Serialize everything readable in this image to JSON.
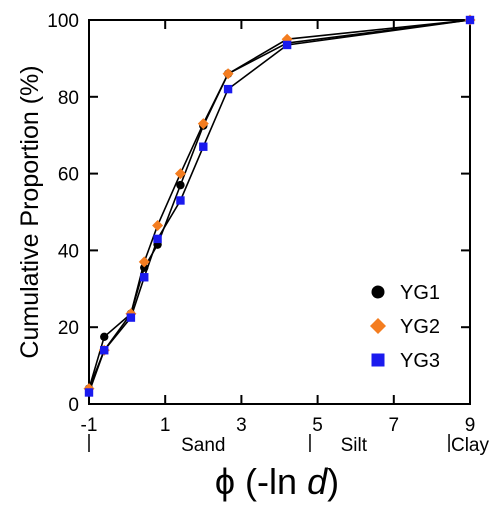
{
  "chart_data": {
    "type": "line",
    "title": "",
    "xlabel": {
      "prefix": "ϕ (-ln ",
      "var": "d",
      "suffix": ")"
    },
    "ylabel": "Cumulative Proportion (%)",
    "xlim": [
      -1,
      9
    ],
    "ylim": [
      0,
      100
    ],
    "xticks": [
      -1,
      1,
      3,
      5,
      7,
      9
    ],
    "xtick_labels": [
      "-1",
      "1",
      "3",
      "5",
      "7",
      "9"
    ],
    "yticks": [
      0,
      20,
      40,
      60,
      80,
      100
    ],
    "ytick_labels": [
      "0",
      "20",
      "40",
      "60",
      "80",
      "100"
    ],
    "grid": false,
    "legend_position": "bottom-right",
    "class_labels": [
      {
        "text": "Sand",
        "x": 2.0
      },
      {
        "text": "Silt",
        "x": 5.95
      },
      {
        "text": "Clay",
        "x": 9.0
      }
    ],
    "class_dividers": [
      -1,
      4.8,
      8.45
    ],
    "series": [
      {
        "name": "YG1",
        "color": "#000000",
        "marker": "circle",
        "x": [
          -1.0,
          -0.6,
          0.1,
          0.45,
          0.8,
          1.4,
          2.0,
          2.65,
          4.2,
          9.0
        ],
        "y": [
          4,
          17.5,
          23.5,
          35.5,
          41.5,
          57,
          72.5,
          86,
          94,
          100
        ]
      },
      {
        "name": "YG2",
        "color": "#f47d20",
        "marker": "diamond",
        "x": [
          -1.0,
          -0.6,
          0.1,
          0.45,
          0.8,
          1.4,
          2.0,
          2.65,
          4.2,
          9.0
        ],
        "y": [
          4,
          14,
          23.5,
          37,
          46.5,
          60,
          73,
          86,
          95,
          100
        ]
      },
      {
        "name": "YG3",
        "color": "#1a1aee",
        "marker": "square",
        "x": [
          -1.0,
          -0.6,
          0.1,
          0.45,
          0.8,
          1.4,
          2.0,
          2.65,
          4.2,
          9.0
        ],
        "y": [
          3,
          14,
          22.5,
          33,
          43,
          53,
          67,
          82,
          93.5,
          100
        ]
      }
    ]
  }
}
